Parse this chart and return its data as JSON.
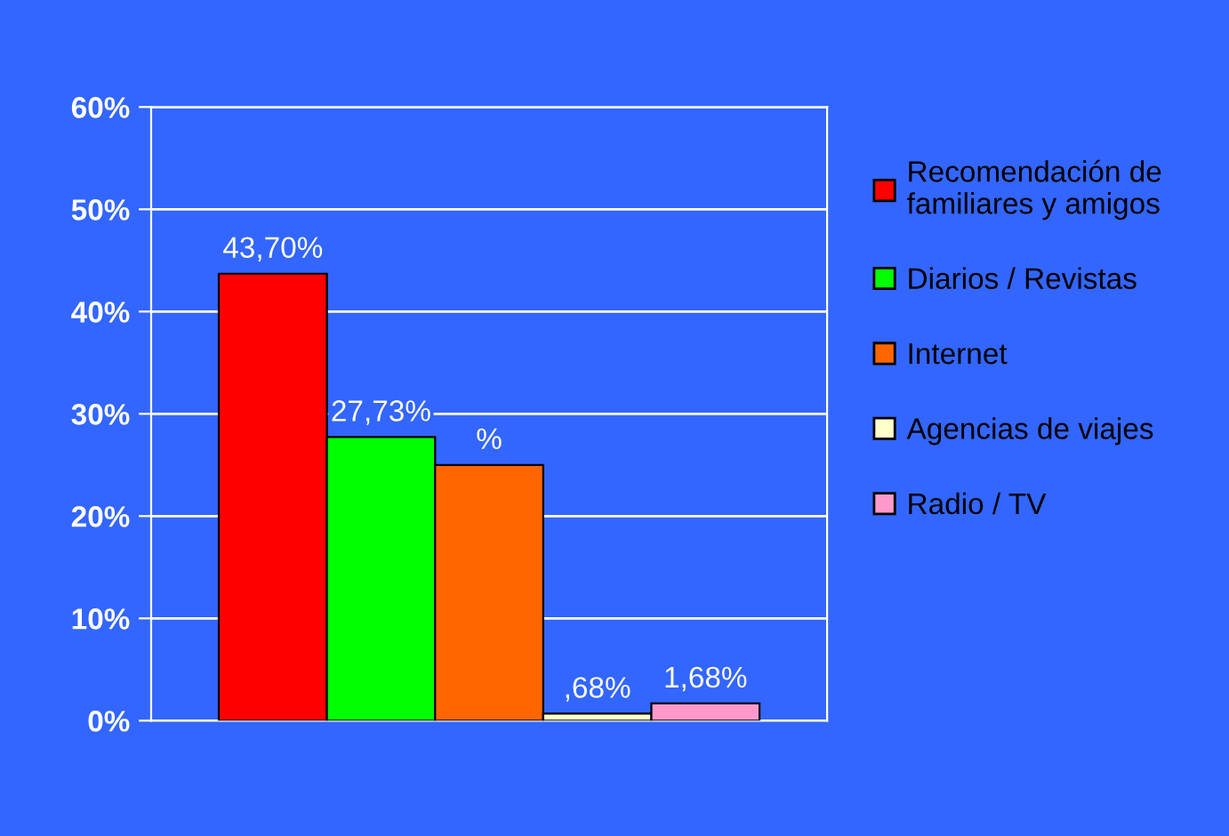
{
  "chart_data": {
    "type": "bar",
    "categories": [
      null
    ],
    "series": [
      {
        "name": "Recomendación de\nfamiliares y amigos",
        "color": "#ff0000",
        "values": [
          43.7
        ],
        "value_labels": [
          "43,70%"
        ]
      },
      {
        "name": "Diarios / Revistas",
        "color": "#00ff00",
        "values": [
          27.73
        ],
        "value_labels": [
          "27,73%"
        ]
      },
      {
        "name": "Internet",
        "color": "#ff6600",
        "values": [
          25
        ],
        "value_labels": [
          "%"
        ]
      },
      {
        "name": "Agencias de viajes",
        "color": "#ffffcc",
        "values": [
          0.68
        ],
        "value_labels": [
          ",68%"
        ]
      },
      {
        "name": "Radio / TV",
        "color": "#ff99cc",
        "values": [
          1.68
        ],
        "value_labels": [
          "1,68%"
        ]
      }
    ],
    "ylim": [
      0,
      60
    ],
    "yticks": [
      {
        "value": 0,
        "label": "0%"
      },
      {
        "value": 10,
        "label": "10%"
      },
      {
        "value": 20,
        "label": "20%"
      },
      {
        "value": 30,
        "label": "30%"
      },
      {
        "value": 40,
        "label": "40%"
      },
      {
        "value": 50,
        "label": "50%"
      },
      {
        "value": 60,
        "label": "60%"
      }
    ],
    "grid": "y",
    "legend": "right"
  }
}
